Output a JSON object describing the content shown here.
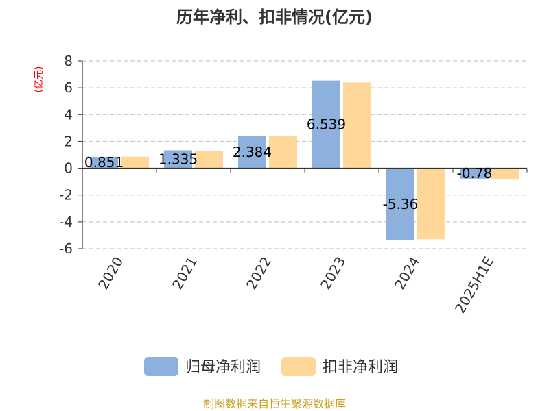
{
  "chart_data": {
    "type": "bar",
    "title": "历年净利、扣非情况(亿元)",
    "ylabel": "(亿元)",
    "xlabel": "",
    "categories": [
      "2020",
      "2021",
      "2022",
      "2023",
      "2024",
      "2025H1E"
    ],
    "series": [
      {
        "name": "归母净利润",
        "color": "#8eb0dc",
        "values": [
          0.851,
          1.335,
          2.384,
          6.539,
          -5.36,
          -0.78
        ],
        "labels": [
          "0.851",
          "1.335",
          "2.384",
          "6.539",
          "-5.36",
          "-0.78"
        ]
      },
      {
        "name": "扣非净利润",
        "color": "#ffd899",
        "values": [
          0.86,
          1.3,
          2.4,
          6.4,
          -5.3,
          -0.85
        ]
      }
    ],
    "ylim": [
      -6,
      8
    ],
    "yticks": [
      "-6",
      "-4",
      "-2",
      "0",
      "2",
      "4",
      "6",
      "8"
    ],
    "grid": true,
    "legend_position": "bottom"
  },
  "footer": "制图数据来自恒生聚源数据库"
}
